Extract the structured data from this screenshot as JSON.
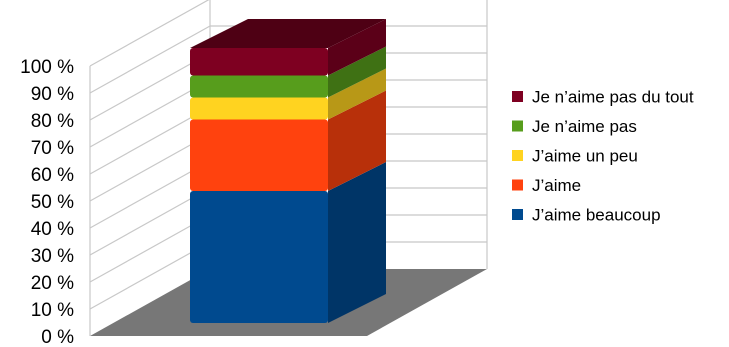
{
  "chart_data": {
    "type": "bar",
    "stacked": true,
    "percent_stacked": true,
    "three_d": true,
    "categories": [
      ""
    ],
    "series": [
      {
        "name": "J’aime beaucoup",
        "values": [
          48
        ],
        "color": "#004a8f"
      },
      {
        "name": "J’aime",
        "values": [
          26
        ],
        "color": "#ff420e"
      },
      {
        "name": "J’aime un peu",
        "values": [
          8
        ],
        "color": "#ffd320"
      },
      {
        "name": "Je n’aime pas",
        "values": [
          8
        ],
        "color": "#579d1c"
      },
      {
        "name": "Je n’aime pas du tout",
        "values": [
          10
        ],
        "color": "#7e0021"
      }
    ],
    "y_ticks": [
      "0 %",
      "10 %",
      "20 %",
      "30 %",
      "40 %",
      "50 %",
      "60 %",
      "70 %",
      "80 %",
      "90 %",
      "100 %"
    ],
    "ylim": [
      0,
      100
    ],
    "grid": true,
    "legend_position": "right",
    "legend": [
      "Je n’aime pas du tout",
      "Je n’aime pas",
      "J’aime un peu",
      "J’aime",
      "J’aime beaucoup"
    ]
  }
}
